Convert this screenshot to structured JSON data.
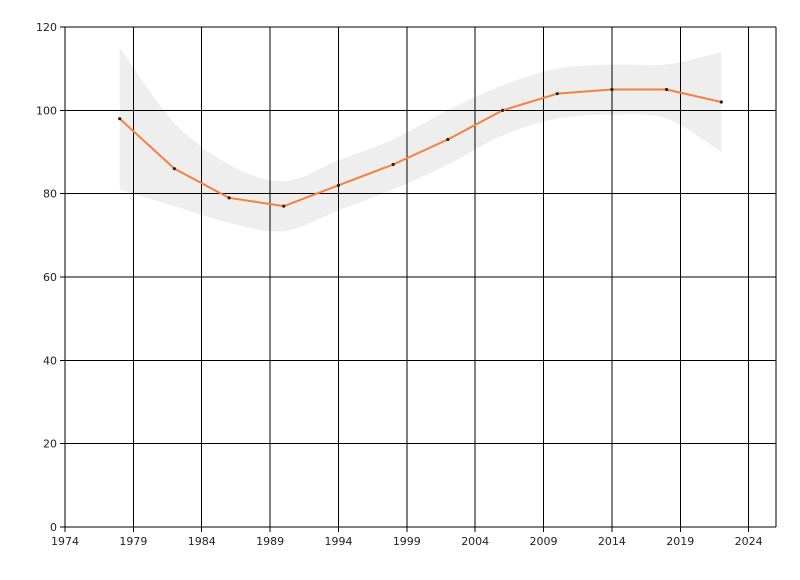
{
  "chart_data": {
    "type": "line",
    "title": "",
    "xlabel": "",
    "ylabel": "",
    "xlim": [
      1974,
      2026
    ],
    "ylim": [
      0,
      120
    ],
    "x_ticks": [
      1974,
      1979,
      1984,
      1989,
      1994,
      1999,
      2004,
      2009,
      2014,
      2019,
      2024
    ],
    "y_ticks": [
      0,
      20,
      40,
      60,
      80,
      100,
      120
    ],
    "grid": true,
    "legend": "none",
    "series": [
      {
        "x": [
          1978,
          1982,
          1986,
          1990,
          1994,
          1998,
          2002,
          2006,
          2010,
          2014,
          2018,
          2022
        ],
        "values": [
          98,
          86,
          79,
          77,
          82,
          87,
          93,
          100,
          104,
          105,
          105,
          102
        ],
        "color": "#f5813d"
      }
    ],
    "confidence_band": {
      "color": "#eeeeee",
      "upper": [
        115,
        97,
        87,
        83,
        88,
        93,
        100,
        106,
        110,
        111,
        111,
        114
      ],
      "lower": [
        81,
        77,
        73,
        71,
        76,
        81,
        87,
        94,
        98,
        99,
        98,
        90
      ]
    }
  }
}
